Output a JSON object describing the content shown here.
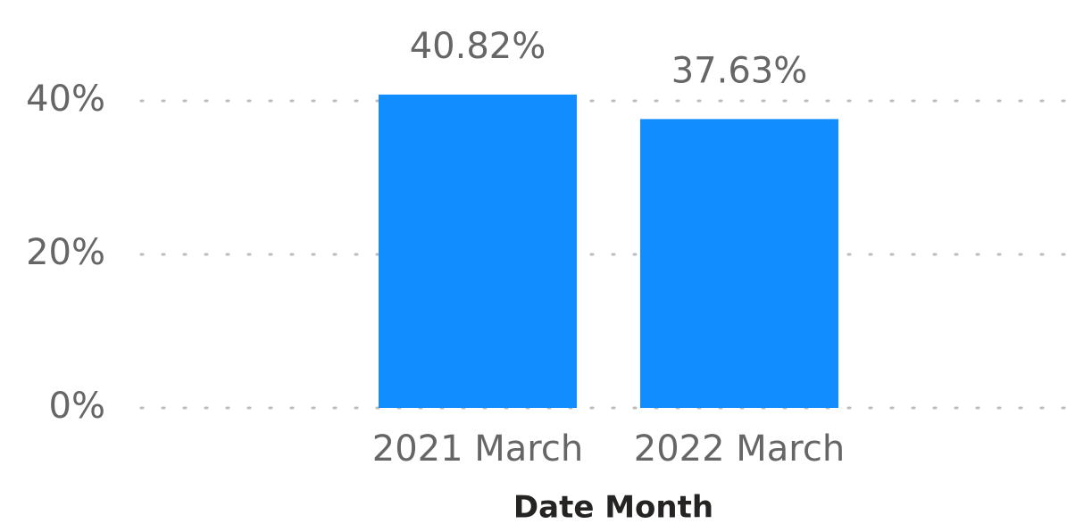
{
  "chart_data": {
    "type": "bar",
    "x_label": "Date Month",
    "categories": [
      "2021 March",
      "2022 March"
    ],
    "values": [
      40.82,
      37.63
    ],
    "value_labels": [
      "40.82%",
      "37.63%"
    ],
    "color": "#118dff",
    "ylim": [
      0,
      50
    ],
    "yticks": [
      {
        "value": 0,
        "label": "0%"
      },
      {
        "value": 20,
        "label": "20%"
      },
      {
        "value": 40,
        "label": "40%"
      }
    ],
    "grid": true
  }
}
